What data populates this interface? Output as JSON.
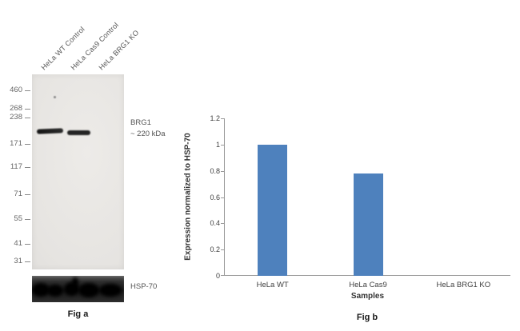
{
  "figure": {
    "fig_a_caption": "Fig a",
    "fig_b_caption": "Fig b"
  },
  "blot": {
    "lane_labels": [
      "HeLa WT Control",
      "HeLa Cas9 Control",
      "HeLa BRG1 KO"
    ],
    "mw_markers": [
      "460",
      "268",
      "238",
      "171",
      "117",
      "71",
      "55",
      "41",
      "31"
    ],
    "band_annotation_line1": "BRG1",
    "band_annotation_line2": "~ 220 kDa",
    "loading_control_label": "HSP-70"
  },
  "chart_data": {
    "type": "bar",
    "categories": [
      "HeLa WT",
      "HeLa Cas9",
      "HeLa BRG1 KO"
    ],
    "values": [
      1,
      0.78,
      0
    ],
    "title": "",
    "xlabel": "Samples",
    "ylabel": "Expression normalized to HSP-70",
    "ylim": [
      0,
      1.2
    ],
    "yticks": [
      0,
      0.2,
      0.4,
      0.6,
      0.8,
      1,
      1.2
    ],
    "bar_color": "#4e81bd",
    "grid": false,
    "legend": false
  }
}
